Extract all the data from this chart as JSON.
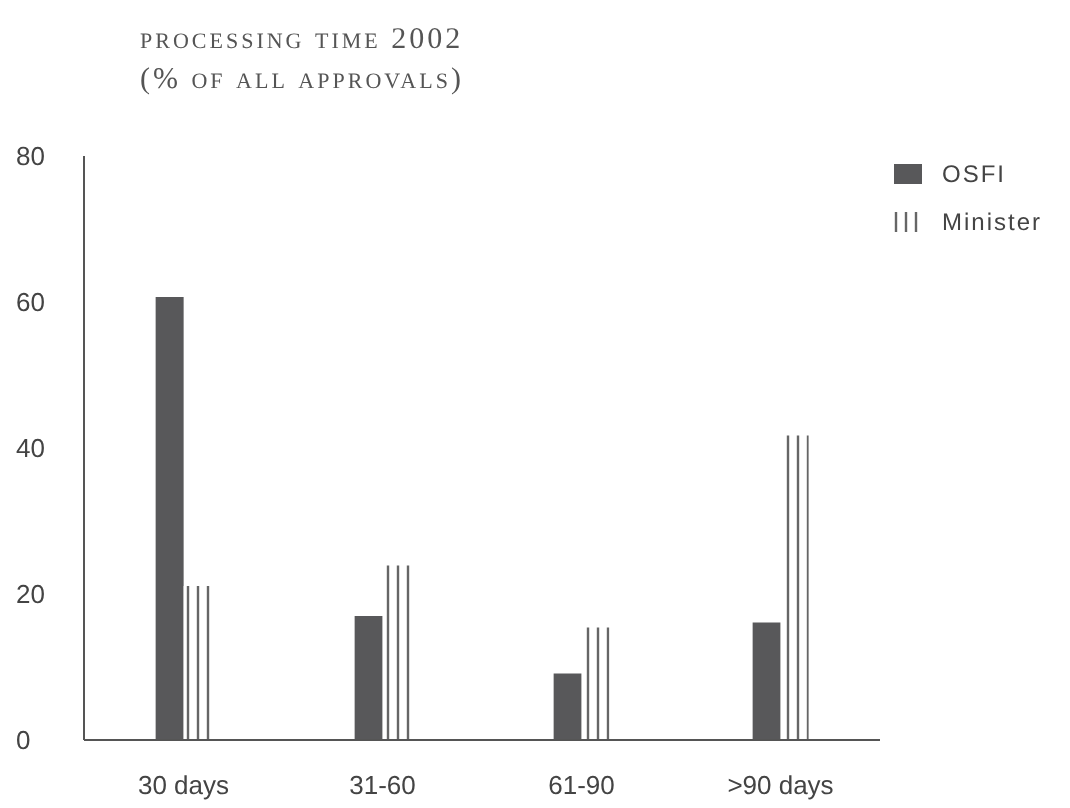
{
  "chart_data": {
    "type": "bar",
    "title": "processing time 2002",
    "subtitle": "(% of all approvals)",
    "categories": [
      "30 days",
      "31-60",
      "61-90",
      ">90 days"
    ],
    "series": [
      {
        "name": "OSFI",
        "color": "#58585a",
        "values": [
          60.7,
          17,
          9.1,
          16.1
        ]
      },
      {
        "name": "Minister",
        "color": "#666666",
        "values": [
          21.1,
          23.9,
          15.4,
          41.7
        ]
      }
    ],
    "ylim": [
      0,
      80
    ],
    "yticks": [
      0,
      20,
      40,
      60,
      80
    ],
    "grid": false,
    "legend": "top right"
  }
}
